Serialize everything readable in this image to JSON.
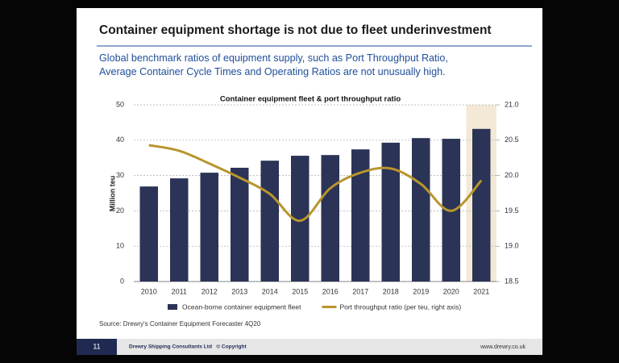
{
  "header": {
    "title": "Container equipment shortage is not due to fleet underinvestment",
    "subtitle": "Global benchmark ratios of equipment supply, such as Port Throughput Ratio, Average Container Cycle Times and Operating Ratios are not unusually high."
  },
  "chart_data": {
    "type": "bar",
    "title": "Container equipment fleet & port throughput ratio",
    "y_label": "Million teu",
    "categories": [
      "2010",
      "2011",
      "2012",
      "2013",
      "2014",
      "2015",
      "2016",
      "2017",
      "2018",
      "2019",
      "2020",
      "2021"
    ],
    "series": [
      {
        "name": "Ocean-borne container equipment fleet",
        "type": "bar",
        "color": "#2b3356",
        "values": [
          26.9,
          29.2,
          30.8,
          32.2,
          34.2,
          35.6,
          35.8,
          37.4,
          39.3,
          40.6,
          40.4,
          43.2
        ]
      },
      {
        "name": "Port throughput ratio (per teu, right axis)",
        "type": "line",
        "axis": "y2",
        "color": "#b8952e",
        "values": [
          20.43,
          20.35,
          20.17,
          19.97,
          19.74,
          19.36,
          19.82,
          20.04,
          20.1,
          19.88,
          19.5,
          19.93
        ]
      }
    ],
    "ylim": [
      0,
      50
    ],
    "yticks": [
      0,
      10,
      20,
      30,
      40,
      50
    ],
    "y2lim": [
      18.5,
      21.0
    ],
    "y2ticks": [
      18.5,
      {
        "value": 19.0,
        "label": "19.0"
      },
      19.5,
      {
        "value": 20.0,
        "label": "20.0"
      },
      20.5,
      {
        "value": 21.0,
        "label": "21.0"
      }
    ],
    "grid": true,
    "legend": "bottom"
  },
  "source": "Source: Drewry's Container Equipment Forecaster 4Q20",
  "footer": {
    "page": "11",
    "company": "Drewry Shipping Consultants Ltd   © Copyright",
    "url": "www.drewry.co.uk"
  }
}
